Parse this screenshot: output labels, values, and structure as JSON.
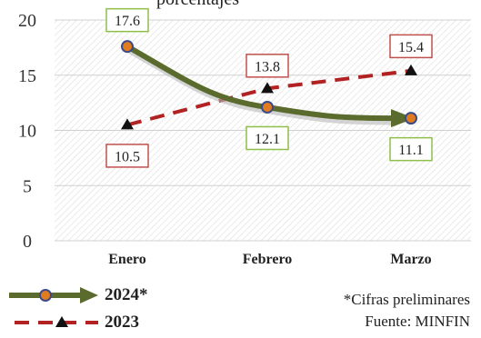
{
  "title_fragment": "porcentajes",
  "chart_data": {
    "type": "line",
    "categories": [
      "Enero",
      "Febrero",
      "Marzo"
    ],
    "ylim": [
      0,
      20
    ],
    "yticks": [
      0,
      5,
      10,
      15,
      20
    ],
    "grid": true,
    "series": [
      {
        "name": "2024*",
        "values": [
          17.6,
          12.1,
          11.1
        ],
        "color": "#5a6b2d",
        "marker_color": "#e07b20",
        "label_border": "#8fbf4a",
        "style": "solid-thick",
        "marker": "circle"
      },
      {
        "name": "2023",
        "values": [
          10.5,
          13.8,
          15.4
        ],
        "color": "#b22222",
        "marker_color": "#111111",
        "label_border": "#c0504d",
        "style": "dashed",
        "marker": "triangle"
      }
    ]
  },
  "notes": {
    "preliminary": "*Cifras preliminares",
    "source": "Fuente: MINFIN"
  }
}
